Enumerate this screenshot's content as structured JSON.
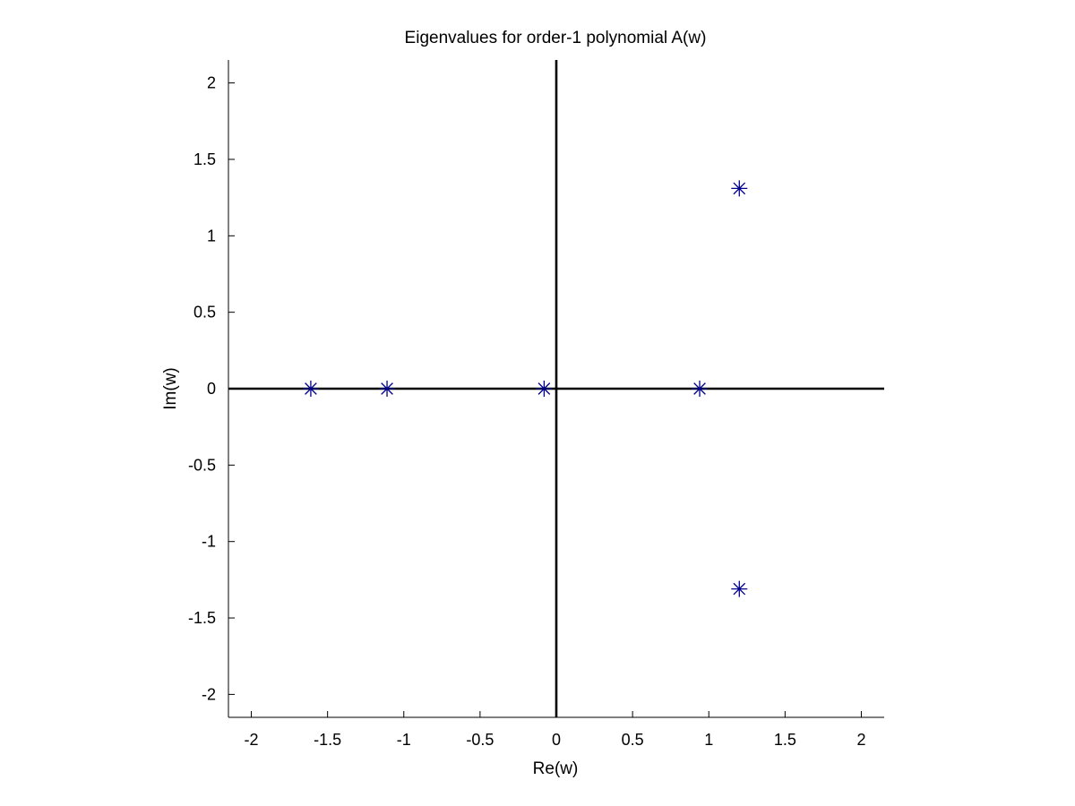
{
  "chart_data": {
    "type": "scatter",
    "title": "Eigenvalues for order-1 polynomial A(w)",
    "xlabel": "Re(w)",
    "ylabel": "Im(w)",
    "xlim": [
      -2.15,
      2.15
    ],
    "ylim": [
      -2.15,
      2.15
    ],
    "xticks": [
      -2,
      -1.5,
      -1,
      -0.5,
      0,
      0.5,
      1,
      1.5,
      2
    ],
    "yticks": [
      -2,
      -1.5,
      -1,
      -0.5,
      0,
      0.5,
      1,
      1.5,
      2
    ],
    "xtick_labels": [
      "-2",
      "-1.5",
      "-1",
      "-0.5",
      "0",
      "0.5",
      "1",
      "1.5",
      "2"
    ],
    "ytick_labels": [
      "-2",
      "-1.5",
      "-1",
      "-0.5",
      "0",
      "0.5",
      "1",
      "1.5",
      "2"
    ],
    "grid": false,
    "marker": "asterisk",
    "marker_color": "#00008b",
    "axis_line_color": "#000000",
    "zero_lines": true,
    "series": [
      {
        "x": [
          -1.61,
          -1.11,
          -0.08,
          0.94,
          1.2,
          1.2
        ],
        "y": [
          0,
          0,
          0,
          0,
          1.31,
          -1.31
        ]
      }
    ]
  }
}
